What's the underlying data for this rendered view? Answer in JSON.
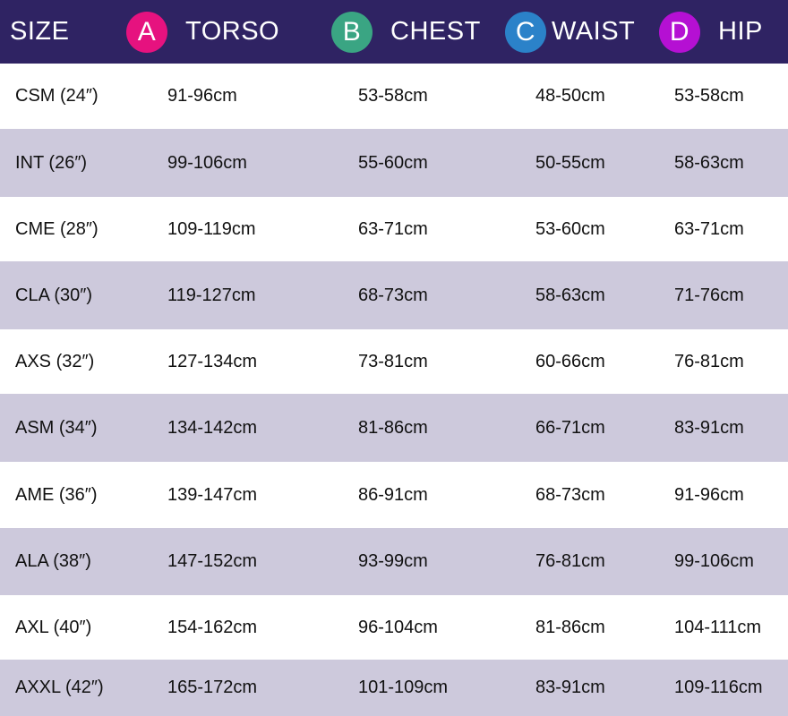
{
  "header": {
    "size": "SIZE",
    "columns": [
      {
        "letter": "A",
        "label": "TORSO",
        "color": "#e6127f"
      },
      {
        "letter": "B",
        "label": "CHEST",
        "color": "#3aa583"
      },
      {
        "letter": "C",
        "label": "WAIST",
        "color": "#2b82c9"
      },
      {
        "letter": "D",
        "label": "HIP",
        "color": "#b510d3"
      }
    ]
  },
  "rows": [
    [
      "CSM (24″)",
      "91-96cm",
      "53-58cm",
      "48-50cm",
      "53-58cm"
    ],
    [
      "INT (26″)",
      "99-106cm",
      "55-60cm",
      "50-55cm",
      "58-63cm"
    ],
    [
      "CME (28″)",
      "109-119cm",
      "63-71cm",
      "53-60cm",
      "63-71cm"
    ],
    [
      "CLA (30″)",
      "119-127cm",
      "68-73cm",
      "58-63cm",
      "71-76cm"
    ],
    [
      "AXS (32″)",
      "127-134cm",
      "73-81cm",
      "60-66cm",
      "76-81cm"
    ],
    [
      "ASM (34″)",
      "134-142cm",
      "81-86cm",
      "66-71cm",
      "83-91cm"
    ],
    [
      "AME (36″)",
      "139-147cm",
      "86-91cm",
      "68-73cm",
      "91-96cm"
    ],
    [
      "ALA (38″)",
      "147-152cm",
      "93-99cm",
      "76-81cm",
      "99-106cm"
    ],
    [
      "AXL (40″)",
      "154-162cm",
      "96-104cm",
      "81-86cm",
      "104-111cm"
    ],
    [
      "AXXL (42″)",
      "165-172cm",
      "101-109cm",
      "83-91cm",
      "109-116cm"
    ]
  ]
}
